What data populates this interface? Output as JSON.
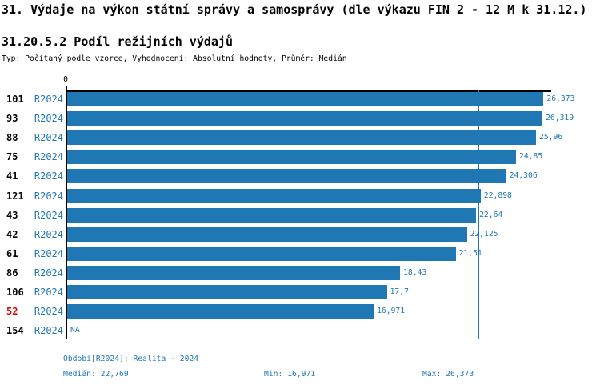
{
  "header": {
    "title": "31. Výdaje na výkon státní správy a samosprávy (dle výkazu FIN 2 - 12 M k 31.12.)",
    "subtitle": "31.20.5.2 Podíl režijních výdajů",
    "meta": "Typ: Počítaný podle vzorce, Vyhodnocení: Absolutní hodnoty, Průměr: Medián"
  },
  "chart_data": {
    "type": "bar",
    "orientation": "horizontal",
    "categories": [
      "101",
      "93",
      "88",
      "75",
      "41",
      "121",
      "43",
      "42",
      "61",
      "86",
      "106",
      "52",
      "154"
    ],
    "period_label": "R2024",
    "values": [
      26.373,
      26.319,
      25.96,
      24.85,
      24.306,
      22.898,
      22.64,
      22.125,
      21.51,
      18.43,
      17.7,
      16.971,
      null
    ],
    "value_labels": [
      "26,373",
      "26,319",
      "25,96",
      "24,85",
      "24,306",
      "22,898",
      "22,64",
      "22,125",
      "21,51",
      "18,43",
      "17,7",
      "16,971",
      "NA"
    ],
    "highlighted_categories": [
      "52"
    ],
    "axis": {
      "origin_label": "0",
      "xmax": 26.8
    },
    "median_value": 22.769,
    "stats": {
      "median": 22.769,
      "min": 16.971,
      "max": 26.373
    },
    "legend_position": "none",
    "grid": false,
    "colors": {
      "bar": "#1F77B4",
      "accent_text": "#1F77B4",
      "highlight": "#E60000",
      "axis": "#000000"
    }
  },
  "footer": {
    "period_line": "Období[R2024]: Realita - 2024",
    "median_label": "Medián: 22,769",
    "min_label": "Min: 16,971",
    "max_label": "Max: 26,373"
  }
}
